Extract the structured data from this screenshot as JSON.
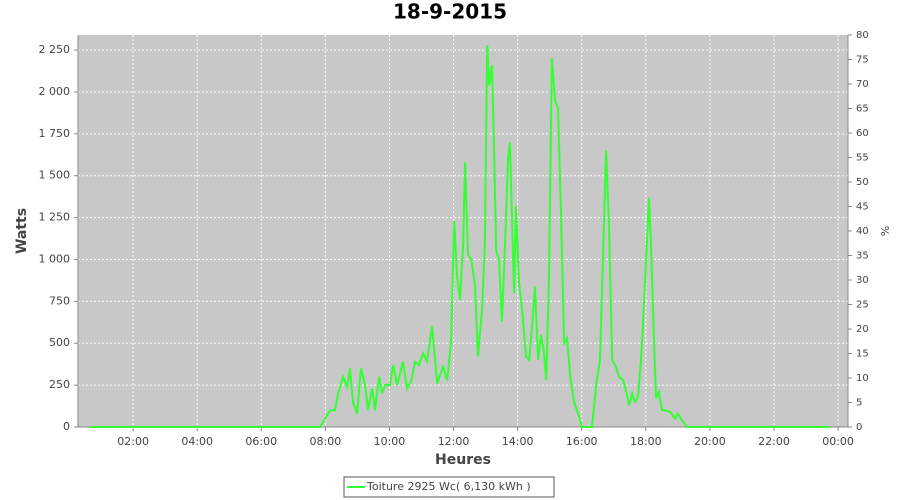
{
  "chart_data": {
    "type": "line",
    "title": "18-9-2015",
    "x_label": "Heures",
    "y_label": "Watts",
    "y2_label": "%",
    "xlim": [
      0.28,
      24.31
    ],
    "ylim": [
      0,
      2340
    ],
    "y2lim": [
      0,
      80
    ],
    "grid": true,
    "xticks": [
      {
        "value": 2,
        "label": "02:00"
      },
      {
        "value": 4,
        "label": "04:00"
      },
      {
        "value": 6,
        "label": "06:00"
      },
      {
        "value": 8,
        "label": "08:00"
      },
      {
        "value": 10,
        "label": "10:00"
      },
      {
        "value": 12,
        "label": "12:00"
      },
      {
        "value": 14,
        "label": "14:00"
      },
      {
        "value": 16,
        "label": "16:00"
      },
      {
        "value": 18,
        "label": "18:00"
      },
      {
        "value": 20,
        "label": "20:00"
      },
      {
        "value": 22,
        "label": "22:00"
      },
      {
        "value": 24,
        "label": "00:00"
      }
    ],
    "yticks": [
      0,
      250,
      500,
      750,
      {
        "value": 1000,
        "label": "1 000"
      },
      {
        "value": 1250,
        "label": "1 250"
      },
      {
        "value": 1500,
        "label": "1 500"
      },
      {
        "value": 1750,
        "label": "1 750"
      },
      {
        "value": 2000,
        "label": "2 000"
      },
      {
        "value": 2250,
        "label": "2 250"
      }
    ],
    "y2ticks": [
      0,
      5,
      10,
      15,
      20,
      25,
      30,
      35,
      40,
      45,
      50,
      55,
      60,
      65,
      70,
      75,
      80
    ],
    "x": [
      0.66,
      7.83,
      7.99,
      8.15,
      8.3,
      8.4,
      8.55,
      8.68,
      8.77,
      8.86,
      8.99,
      9.11,
      9.24,
      9.33,
      9.46,
      9.55,
      9.68,
      9.77,
      9.86,
      10.02,
      10.11,
      10.24,
      10.42,
      10.55,
      10.67,
      10.8,
      10.92,
      11.05,
      11.17,
      11.33,
      11.49,
      11.67,
      11.8,
      11.92,
      12.02,
      12.11,
      12.2,
      12.3,
      12.36,
      12.45,
      12.55,
      12.67,
      12.76,
      12.89,
      12.98,
      13.05,
      13.11,
      13.2,
      13.26,
      13.33,
      13.42,
      13.51,
      13.61,
      13.7,
      13.76,
      13.83,
      13.89,
      13.95,
      14.04,
      14.14,
      14.26,
      14.36,
      14.45,
      14.54,
      14.64,
      14.73,
      14.82,
      14.89,
      14.98,
      15.07,
      15.17,
      15.26,
      15.35,
      15.45,
      15.54,
      15.64,
      15.76,
      15.89,
      16.01,
      16.32,
      16.45,
      16.57,
      16.66,
      16.76,
      16.85,
      16.95,
      17.07,
      17.16,
      17.29,
      17.38,
      17.48,
      17.57,
      17.66,
      17.76,
      17.85,
      17.91,
      18.01,
      18.1,
      18.16,
      18.26,
      18.32,
      18.41,
      18.51,
      18.6,
      18.76,
      18.91,
      19.0,
      19.13,
      19.29,
      23.75
    ],
    "series": [
      {
        "name": "Toiture 2925 Wc( 6,130 kWh )",
        "color": "#33ff33",
        "values": [
          0,
          0,
          50,
          100,
          100,
          200,
          300,
          240,
          350,
          150,
          80,
          350,
          250,
          100,
          230,
          100,
          300,
          200,
          250,
          250,
          370,
          250,
          390,
          230,
          270,
          390,
          370,
          440,
          390,
          600,
          260,
          360,
          280,
          500,
          1230,
          900,
          760,
          1100,
          1580,
          1030,
          1000,
          850,
          420,
          700,
          1100,
          2280,
          2040,
          2160,
          1700,
          1050,
          1000,
          630,
          1100,
          1600,
          1700,
          1200,
          800,
          1320,
          870,
          700,
          420,
          400,
          600,
          840,
          400,
          550,
          450,
          280,
          900,
          2200,
          1950,
          1900,
          1300,
          500,
          530,
          300,
          150,
          80,
          0,
          0,
          250,
          400,
          1000,
          1650,
          1200,
          400,
          360,
          300,
          280,
          220,
          130,
          200,
          150,
          180,
          400,
          600,
          1000,
          1370,
          1100,
          500,
          170,
          210,
          100,
          100,
          90,
          50,
          80,
          40,
          0,
          0
        ]
      }
    ]
  }
}
